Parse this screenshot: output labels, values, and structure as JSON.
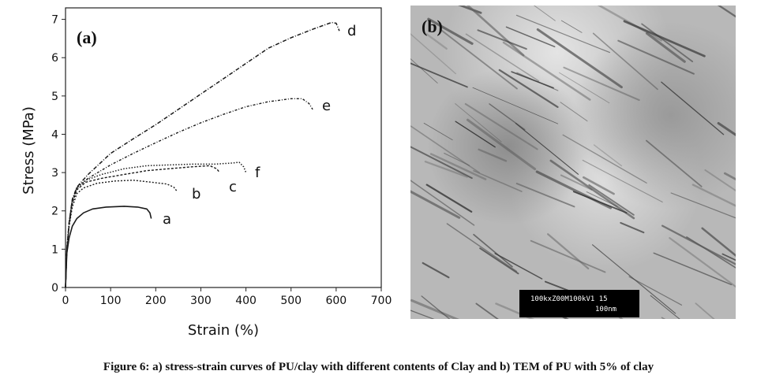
{
  "chart_data": {
    "type": "line",
    "panel_label": "(a)",
    "xlabel": "Strain (%)",
    "ylabel": "Stress (MPa)",
    "xlim": [
      0,
      700
    ],
    "ylim": [
      0,
      7.3
    ],
    "xticks": [
      "0",
      "100",
      "200",
      "300",
      "400",
      "500",
      "600",
      "700"
    ],
    "yticks": [
      "0",
      "1",
      "2",
      "3",
      "4",
      "5",
      "6",
      "7"
    ],
    "grid": false,
    "series": [
      {
        "name": "a",
        "points": [
          [
            0,
            0
          ],
          [
            3,
            0.9
          ],
          [
            8,
            1.3
          ],
          [
            15,
            1.6
          ],
          [
            25,
            1.8
          ],
          [
            40,
            1.95
          ],
          [
            60,
            2.05
          ],
          [
            90,
            2.1
          ],
          [
            130,
            2.12
          ],
          [
            160,
            2.1
          ],
          [
            180,
            2.05
          ],
          [
            187,
            1.95
          ],
          [
            190,
            1.8
          ]
        ]
      },
      {
        "name": "b",
        "points": [
          [
            0,
            0
          ],
          [
            3,
            1.0
          ],
          [
            8,
            1.6
          ],
          [
            15,
            2.1
          ],
          [
            25,
            2.45
          ],
          [
            40,
            2.6
          ],
          [
            70,
            2.72
          ],
          [
            110,
            2.78
          ],
          [
            150,
            2.8
          ],
          [
            190,
            2.75
          ],
          [
            225,
            2.7
          ],
          [
            240,
            2.62
          ],
          [
            248,
            2.5
          ]
        ]
      },
      {
        "name": "c",
        "points": [
          [
            0,
            0
          ],
          [
            3,
            1.0
          ],
          [
            8,
            1.65
          ],
          [
            15,
            2.2
          ],
          [
            25,
            2.55
          ],
          [
            45,
            2.75
          ],
          [
            80,
            2.85
          ],
          [
            130,
            2.95
          ],
          [
            180,
            3.05
          ],
          [
            230,
            3.1
          ],
          [
            280,
            3.15
          ],
          [
            320,
            3.18
          ],
          [
            335,
            3.1
          ],
          [
            342,
            3.0
          ]
        ]
      },
      {
        "name": "f",
        "points": [
          [
            0,
            0
          ],
          [
            3,
            1.0
          ],
          [
            8,
            1.7
          ],
          [
            15,
            2.25
          ],
          [
            25,
            2.6
          ],
          [
            45,
            2.8
          ],
          [
            80,
            2.95
          ],
          [
            130,
            3.1
          ],
          [
            180,
            3.18
          ],
          [
            230,
            3.2
          ],
          [
            280,
            3.22
          ],
          [
            330,
            3.22
          ],
          [
            370,
            3.25
          ],
          [
            385,
            3.27
          ],
          [
            395,
            3.15
          ],
          [
            400,
            3.0
          ]
        ]
      },
      {
        "name": "e",
        "points": [
          [
            0,
            0
          ],
          [
            3,
            1.0
          ],
          [
            8,
            1.7
          ],
          [
            15,
            2.3
          ],
          [
            25,
            2.6
          ],
          [
            50,
            2.85
          ],
          [
            100,
            3.2
          ],
          [
            150,
            3.5
          ],
          [
            200,
            3.78
          ],
          [
            250,
            4.05
          ],
          [
            300,
            4.3
          ],
          [
            350,
            4.52
          ],
          [
            400,
            4.72
          ],
          [
            450,
            4.85
          ],
          [
            500,
            4.93
          ],
          [
            525,
            4.93
          ],
          [
            540,
            4.8
          ],
          [
            548,
            4.65
          ]
        ]
      },
      {
        "name": "d",
        "points": [
          [
            0,
            0
          ],
          [
            3,
            1.0
          ],
          [
            8,
            1.7
          ],
          [
            15,
            2.3
          ],
          [
            25,
            2.62
          ],
          [
            50,
            2.95
          ],
          [
            100,
            3.5
          ],
          [
            150,
            3.88
          ],
          [
            200,
            4.25
          ],
          [
            250,
            4.65
          ],
          [
            300,
            5.05
          ],
          [
            350,
            5.45
          ],
          [
            400,
            5.85
          ],
          [
            450,
            6.25
          ],
          [
            500,
            6.52
          ],
          [
            550,
            6.75
          ],
          [
            590,
            6.92
          ],
          [
            600,
            6.9
          ],
          [
            607,
            6.7
          ]
        ]
      }
    ]
  },
  "tem_image": {
    "panel_label": "(b)",
    "scale_info": "100kxZ00M100kV1 15",
    "scale_unit": "100nm"
  },
  "caption": "Figure 6: a) stress-strain curves of PU/clay with different contents of Clay and b) TEM of PU with 5% of clay"
}
